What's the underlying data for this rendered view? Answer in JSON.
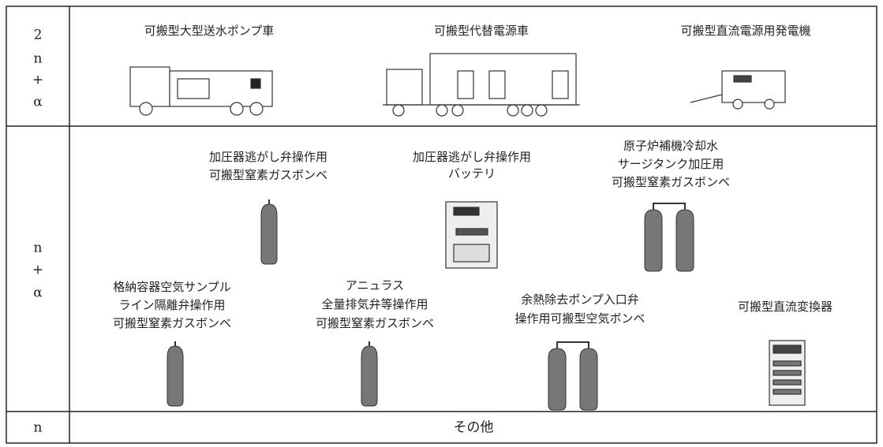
{
  "rows": [
    {
      "label": [
        "2",
        "n",
        "+",
        "α"
      ],
      "items": [
        {
          "lines": [
            "可搬型大型送水ポンプ車"
          ]
        },
        {
          "lines": [
            "可搬型代替電源車"
          ]
        },
        {
          "lines": [
            "可搬型直流電源用発電機"
          ]
        }
      ]
    },
    {
      "label": [
        "n",
        "+",
        "α"
      ],
      "items": [
        {
          "lines": [
            "加圧器逃がし弁操作用",
            "可搬型窒素ガスボンベ"
          ]
        },
        {
          "lines": [
            "加圧器逃がし弁操作用",
            "バッテリ"
          ]
        },
        {
          "lines": [
            "原子炉補機冷却水",
            "サージタンク加圧用",
            "可搬型窒素ガスボンベ"
          ]
        },
        {
          "lines": [
            "格納容器空気サンプル",
            "ライン隔離弁操作用",
            "可搬型窒素ガスボンベ"
          ]
        },
        {
          "lines": [
            "アニュラス",
            "全量排気弁等操作用",
            "可搬型窒素ガスボンベ"
          ]
        },
        {
          "lines": [
            "余熱除去ポンプ入口弁",
            "操作用可搬型空気ボンベ"
          ]
        },
        {
          "lines": [
            "可搬型直流変換器"
          ]
        }
      ]
    },
    {
      "label": [
        "n"
      ],
      "items": [
        {
          "lines": [
            "その他"
          ]
        }
      ]
    }
  ]
}
